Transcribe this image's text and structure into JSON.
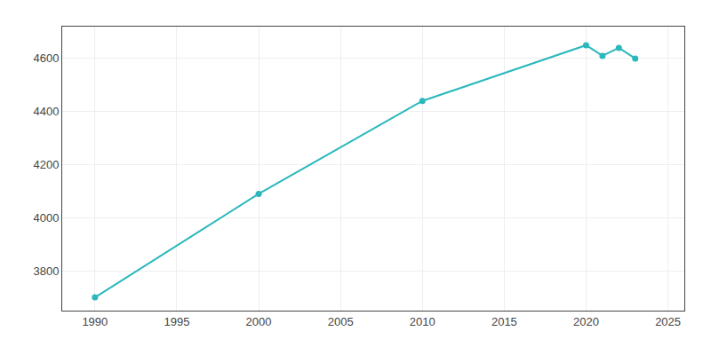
{
  "chart_data": {
    "type": "line",
    "x": [
      1990,
      2000,
      2010,
      2020,
      2021,
      2022,
      2023
    ],
    "values": [
      3700,
      4090,
      4440,
      4650,
      4610,
      4640,
      4600
    ],
    "color": "#2ab8bc",
    "marker": "circle",
    "xlim": [
      1988,
      2026
    ],
    "ylim": [
      3650,
      4720
    ],
    "xticks": [
      1990,
      1995,
      2000,
      2005,
      2010,
      2015,
      2020,
      2025
    ],
    "yticks": [
      3800,
      4000,
      4200,
      4400,
      4600
    ],
    "grid": true
  }
}
